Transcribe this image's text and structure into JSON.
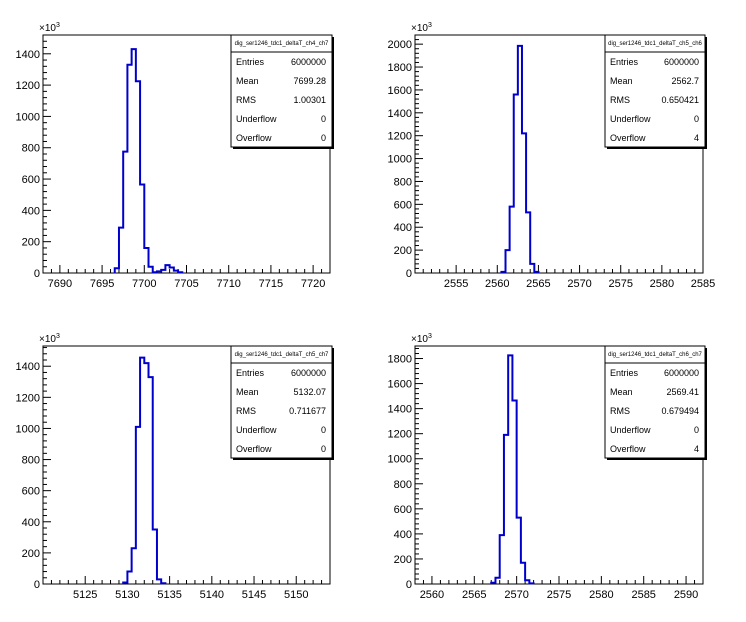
{
  "chart_data": [
    {
      "type": "histogram",
      "stats": {
        "title": "dig_ser1246_tdc1_deltaT_ch4_ch7",
        "rows": [
          {
            "label": "Entries",
            "value": "6000000"
          },
          {
            "label": "Mean",
            "value": "7699.28"
          },
          {
            "label": "RMS",
            "value": "1.00301"
          },
          {
            "label": "Underflow",
            "value": "0"
          },
          {
            "label": "Overflow",
            "value": "0"
          }
        ]
      },
      "y_multiplier": {
        "base": "×10",
        "exp": "3"
      },
      "xlim": [
        7688,
        7722
      ],
      "ylim": [
        0,
        1520
      ],
      "xticks": [
        7690,
        7695,
        7700,
        7705,
        7710,
        7715,
        7720
      ],
      "yticks": [
        0,
        200,
        400,
        600,
        800,
        1000,
        1200,
        1400
      ],
      "bin_width": 0.5,
      "bins": [
        {
          "x": 7696.5,
          "y": 30
        },
        {
          "x": 7697.0,
          "y": 290
        },
        {
          "x": 7697.5,
          "y": 775
        },
        {
          "x": 7698.0,
          "y": 1330
        },
        {
          "x": 7698.5,
          "y": 1430
        },
        {
          "x": 7699.0,
          "y": 1225
        },
        {
          "x": 7699.5,
          "y": 565
        },
        {
          "x": 7700.0,
          "y": 160
        },
        {
          "x": 7700.5,
          "y": 40
        },
        {
          "x": 7701.0,
          "y": 5
        },
        {
          "x": 7701.5,
          "y": 10
        },
        {
          "x": 7702.0,
          "y": 20
        },
        {
          "x": 7702.5,
          "y": 50
        },
        {
          "x": 7703.0,
          "y": 35
        },
        {
          "x": 7703.5,
          "y": 15
        },
        {
          "x": 7704.0,
          "y": 5
        }
      ]
    },
    {
      "type": "histogram",
      "stats": {
        "title": "dig_ser1246_tdc1_deltaT_ch5_ch6",
        "rows": [
          {
            "label": "Entries",
            "value": "6000000"
          },
          {
            "label": "Mean",
            "value": "2562.7"
          },
          {
            "label": "RMS",
            "value": "0.650421"
          },
          {
            "label": "Underflow",
            "value": "0"
          },
          {
            "label": "Overflow",
            "value": "4"
          }
        ]
      },
      "y_multiplier": {
        "base": "×10",
        "exp": "3"
      },
      "xlim": [
        2550,
        2585
      ],
      "ylim": [
        0,
        2080
      ],
      "xticks": [
        2555,
        2560,
        2565,
        2570,
        2575,
        2580,
        2585
      ],
      "yticks": [
        0,
        200,
        400,
        600,
        800,
        1000,
        1200,
        1400,
        1600,
        1800,
        2000
      ],
      "bin_width": 0.5,
      "bins": [
        {
          "x": 2560.5,
          "y": 10
        },
        {
          "x": 2561.0,
          "y": 200
        },
        {
          "x": 2561.5,
          "y": 580
        },
        {
          "x": 2562.0,
          "y": 1560
        },
        {
          "x": 2562.5,
          "y": 1985
        },
        {
          "x": 2563.0,
          "y": 1220
        },
        {
          "x": 2563.5,
          "y": 530
        },
        {
          "x": 2564.0,
          "y": 80
        },
        {
          "x": 2564.5,
          "y": 10
        }
      ]
    },
    {
      "type": "histogram",
      "stats": {
        "title": "dig_ser1246_tdc1_deltaT_ch5_ch7",
        "rows": [
          {
            "label": "Entries",
            "value": "6000000"
          },
          {
            "label": "Mean",
            "value": "5132.07"
          },
          {
            "label": "RMS",
            "value": "0.711677"
          },
          {
            "label": "Underflow",
            "value": "0"
          },
          {
            "label": "Overflow",
            "value": "0"
          }
        ]
      },
      "y_multiplier": {
        "base": "×10",
        "exp": "3"
      },
      "xlim": [
        5120,
        5154
      ],
      "ylim": [
        0,
        1530
      ],
      "xticks": [
        5125,
        5130,
        5135,
        5140,
        5145,
        5150
      ],
      "yticks": [
        0,
        200,
        400,
        600,
        800,
        1000,
        1200,
        1400
      ],
      "bin_width": 0.5,
      "bins": [
        {
          "x": 5129.5,
          "y": 10
        },
        {
          "x": 5130.0,
          "y": 80
        },
        {
          "x": 5130.5,
          "y": 230
        },
        {
          "x": 5131.0,
          "y": 1010
        },
        {
          "x": 5131.5,
          "y": 1455
        },
        {
          "x": 5132.0,
          "y": 1420
        },
        {
          "x": 5132.5,
          "y": 1330
        },
        {
          "x": 5133.0,
          "y": 350
        },
        {
          "x": 5133.5,
          "y": 30
        },
        {
          "x": 5134.0,
          "y": 5
        }
      ]
    },
    {
      "type": "histogram",
      "stats": {
        "title": "dig_ser1246_tdc1_deltaT_ch6_ch7",
        "rows": [
          {
            "label": "Entries",
            "value": "6000000"
          },
          {
            "label": "Mean",
            "value": "2569.41"
          },
          {
            "label": "RMS",
            "value": "0.679494"
          },
          {
            "label": "Underflow",
            "value": "0"
          },
          {
            "label": "Overflow",
            "value": "4"
          }
        ]
      },
      "y_multiplier": {
        "base": "×10",
        "exp": "3"
      },
      "xlim": [
        2558,
        2592
      ],
      "ylim": [
        0,
        1900
      ],
      "xticks": [
        2560,
        2565,
        2570,
        2575,
        2580,
        2585,
        2590
      ],
      "yticks": [
        0,
        200,
        400,
        600,
        800,
        1000,
        1200,
        1400,
        1600,
        1800
      ],
      "bin_width": 0.5,
      "bins": [
        {
          "x": 2567.0,
          "y": 10
        },
        {
          "x": 2567.5,
          "y": 50
        },
        {
          "x": 2568.0,
          "y": 390
        },
        {
          "x": 2568.5,
          "y": 1190
        },
        {
          "x": 2569.0,
          "y": 1825
        },
        {
          "x": 2569.5,
          "y": 1465
        },
        {
          "x": 2570.0,
          "y": 530
        },
        {
          "x": 2570.5,
          "y": 170
        },
        {
          "x": 2571.0,
          "y": 30
        },
        {
          "x": 2571.5,
          "y": 5
        }
      ]
    }
  ]
}
